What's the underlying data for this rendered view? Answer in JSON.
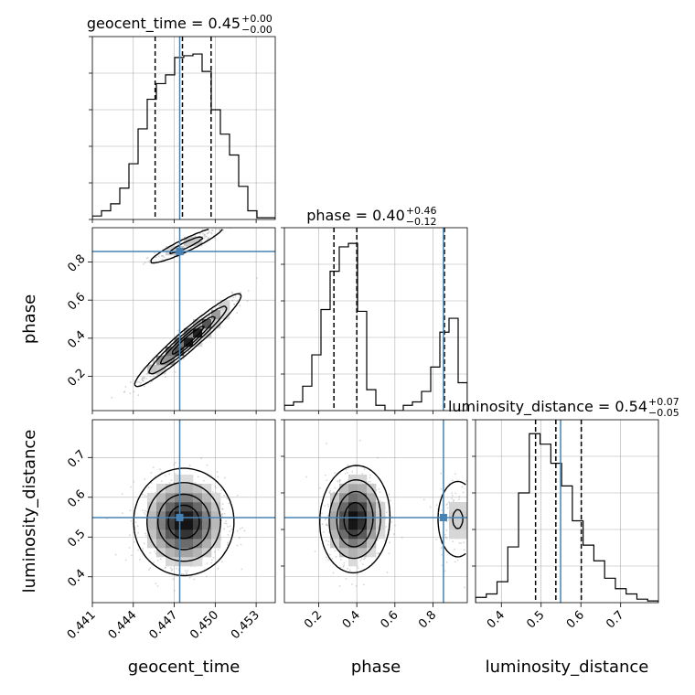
{
  "chart_data": {
    "type": "corner",
    "parameters": [
      "geocent_time",
      "phase",
      "luminosity_distance"
    ],
    "axis_labels": [
      "geocent_time",
      "phase",
      "luminosity_distance"
    ],
    "truths": {
      "geocent_time": 0.4474,
      "phase": 0.855,
      "luminosity_distance": 0.549
    },
    "titles": [
      {
        "param": "geocent_time",
        "prefix": "geocent_time = ",
        "value": "0.45",
        "plus": "+0.00",
        "minus": "−0.00"
      },
      {
        "param": "phase",
        "prefix": "phase = ",
        "value": "0.40",
        "plus": "+0.46",
        "minus": "−0.12"
      },
      {
        "param": "luminosity_distance",
        "prefix": "luminosity_distance = ",
        "value": "0.54",
        "plus": "+0.07",
        "minus": "−0.05"
      }
    ],
    "ranges": {
      "geocent_time": [
        0.441,
        0.4544
      ],
      "phase": [
        0.02,
        0.98
      ],
      "luminosity_distance": [
        0.335,
        0.795
      ]
    },
    "ticks": {
      "geocent_time": [
        "0.441",
        "0.444",
        "0.447",
        "0.450",
        "0.453"
      ],
      "phase": [
        "0.2",
        "0.4",
        "0.6",
        "0.8"
      ],
      "luminosity_distance": [
        "0.4",
        "0.5",
        "0.6",
        "0.7"
      ]
    },
    "quantiles": {
      "geocent_time": [
        0.4456,
        0.4476,
        0.4497
      ],
      "phase": [
        0.28,
        0.4,
        0.86
      ],
      "luminosity_distance": [
        0.486,
        0.537,
        0.601
      ]
    },
    "histograms": {
      "geocent_time": {
        "bins": [
          0.441,
          0.4544
        ],
        "counts": [
          0.02,
          0.05,
          0.09,
          0.18,
          0.32,
          0.52,
          0.69,
          0.78,
          0.83,
          0.93,
          0.94,
          0.95,
          0.85,
          0.63,
          0.49,
          0.37,
          0.19,
          0.05,
          0.01,
          0.01
        ]
      },
      "phase": {
        "bins": [
          0.02,
          0.98
        ],
        "counts": [
          0.03,
          0.05,
          0.14,
          0.32,
          0.58,
          0.8,
          0.94,
          0.96,
          0.57,
          0.12,
          0.03,
          0.0,
          0.0,
          0.03,
          0.05,
          0.11,
          0.25,
          0.45,
          0.53,
          0.16
        ]
      },
      "luminosity_distance": {
        "bins": [
          0.335,
          0.795
        ],
        "counts": [
          0.03,
          0.05,
          0.12,
          0.32,
          0.63,
          0.97,
          0.91,
          0.8,
          0.67,
          0.47,
          0.33,
          0.24,
          0.14,
          0.08,
          0.05,
          0.02,
          0.01
        ]
      }
    },
    "hist2d": [
      {
        "x": "geocent_time",
        "y": "phase",
        "modes": [
          {
            "cx": 0.448,
            "cy": 0.39,
            "sx": 0.0016,
            "sy": 0.1,
            "rho": 0.96,
            "w": 0.85
          },
          {
            "cx": 0.4479,
            "cy": 0.89,
            "sx": 0.0014,
            "sy": 0.05,
            "rho": 0.93,
            "w": 0.15
          }
        ]
      },
      {
        "x": "geocent_time",
        "y": "luminosity_distance",
        "modes": [
          {
            "cx": 0.4477,
            "cy": 0.538,
            "sx": 0.0015,
            "sy": 0.055,
            "rho": 0.0,
            "w": 1.0
          }
        ]
      },
      {
        "x": "phase",
        "y": "luminosity_distance",
        "modes": [
          {
            "cx": 0.39,
            "cy": 0.545,
            "sx": 0.075,
            "sy": 0.055,
            "rho": 0.05,
            "w": 0.85
          },
          {
            "cx": 0.93,
            "cy": 0.545,
            "sx": 0.06,
            "sy": 0.055,
            "rho": 0.0,
            "w": 0.15
          }
        ]
      }
    ],
    "colors": {
      "truth": "#4682b4",
      "grid": "#b0b0b0",
      "hist": "#000000"
    },
    "grid": true
  }
}
